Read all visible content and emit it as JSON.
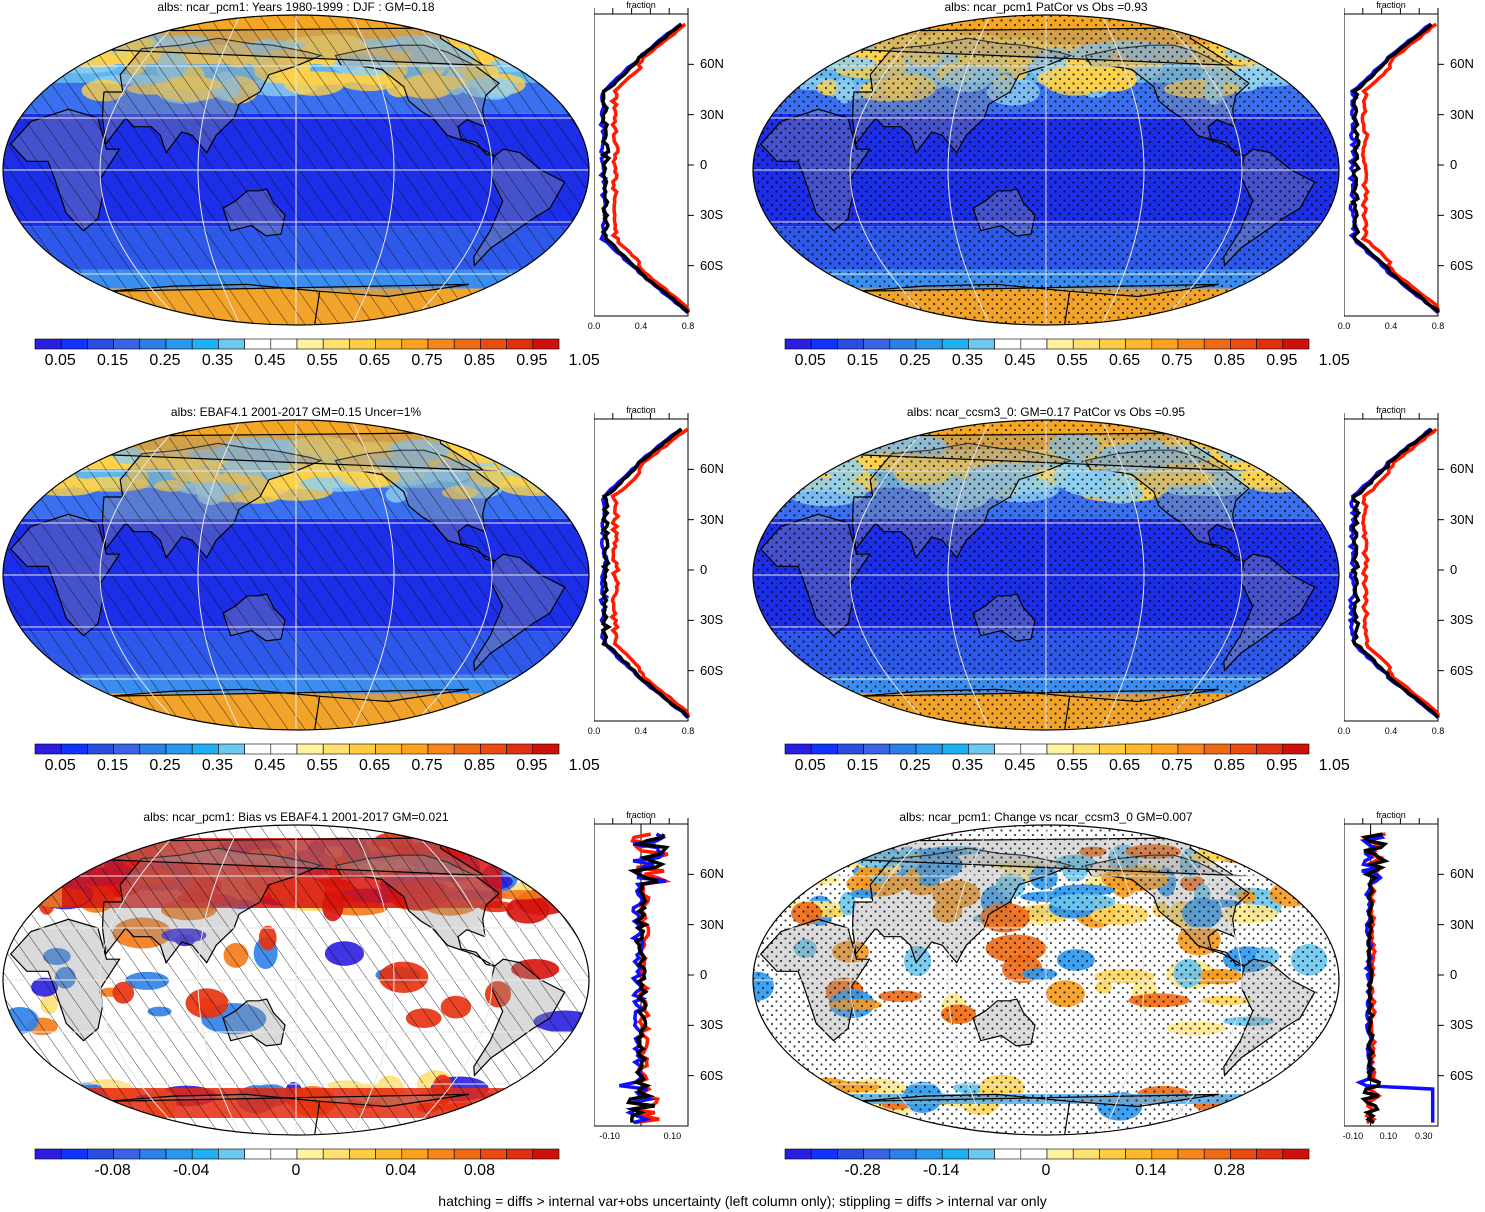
{
  "footnote": "hatching = diffs > internal var+obs uncertainty (left column only); stippling = diffs > internal var only",
  "palette": {
    "full": [
      "#2a1fe0",
      "#1133ff",
      "#2b4de0",
      "#3a63e6",
      "#2f7fe8",
      "#2a97ef",
      "#1fb0f4",
      "#6cc8f0",
      "#ffffff",
      "#ffffff",
      "#fff3a0",
      "#ffe070",
      "#ffcc44",
      "#ffb82e",
      "#fca21c",
      "#f7871a",
      "#f06a14",
      "#ea4c10",
      "#e0300e",
      "#d0100a"
    ],
    "land_overlay": "rgba(150,150,150,0.35)"
  },
  "profile_axis_label": "fraction",
  "lat_labels": [
    "60N",
    "30N",
    "0",
    "30S",
    "60S"
  ],
  "panels": [
    {
      "id": "p1",
      "title": "albs: ncar_pcm1: Years 1980-1999 : DJF : GM=0.18",
      "kind": "abs",
      "pattern": "hatch",
      "cbar_labels": [
        "0.05",
        "0.15",
        "0.25",
        "0.35",
        "0.45",
        "0.55",
        "0.65",
        "0.75",
        "0.85",
        "0.95",
        "1.05"
      ],
      "profile_xticks": [
        "0.0",
        "0.4",
        "0.8"
      ],
      "profile_xrange": [
        0,
        0.8
      ]
    },
    {
      "id": "p2",
      "title": "albs: ncar_pcm1 PatCor vs Obs =0.93",
      "kind": "abs",
      "pattern": "stipple",
      "cbar_labels": [
        "0.05",
        "0.15",
        "0.25",
        "0.35",
        "0.45",
        "0.55",
        "0.65",
        "0.75",
        "0.85",
        "0.95",
        "1.05"
      ],
      "profile_xticks": [
        "0.0",
        "0.4",
        "0.8"
      ],
      "profile_xrange": [
        0,
        0.8
      ]
    },
    {
      "id": "p3",
      "title": "albs: EBAF4.1 2001-2017 GM=0.15 Uncer=1%",
      "kind": "abs",
      "pattern": "hatch",
      "cbar_labels": [
        "0.05",
        "0.15",
        "0.25",
        "0.35",
        "0.45",
        "0.55",
        "0.65",
        "0.75",
        "0.85",
        "0.95",
        "1.05"
      ],
      "profile_xticks": [
        "0.0",
        "0.4",
        "0.8"
      ],
      "profile_xrange": [
        0,
        0.8
      ]
    },
    {
      "id": "p4",
      "title": "albs: ncar_ccsm3_0: GM=0.17 PatCor vs Obs =0.95",
      "kind": "abs",
      "pattern": "stipple",
      "cbar_labels": [
        "0.05",
        "0.15",
        "0.25",
        "0.35",
        "0.45",
        "0.55",
        "0.65",
        "0.75",
        "0.85",
        "0.95",
        "1.05"
      ],
      "profile_xticks": [
        "0.0",
        "0.4",
        "0.8"
      ],
      "profile_xrange": [
        0,
        0.8
      ]
    },
    {
      "id": "p5",
      "title": "albs: ncar_pcm1: Bias vs EBAF4.1 2001-2017 GM=0.021",
      "kind": "diff",
      "pattern": "hatch",
      "cbar_labels": [
        "-0.08",
        "-0.04",
        "0",
        "0.04",
        "0.08"
      ],
      "profile_xticks": [
        "-0.10",
        "0.10"
      ],
      "profile_xrange": [
        -0.15,
        0.15
      ]
    },
    {
      "id": "p6",
      "title": "albs: ncar_pcm1: Change vs ncar_ccsm3_0 GM=0.007",
      "kind": "diff",
      "pattern": "stipple",
      "cbar_labels": [
        "-0.28",
        "-0.14",
        "0",
        "0.14",
        "0.28"
      ],
      "profile_xticks": [
        "-0.10",
        "0.10",
        "0.30"
      ],
      "profile_xrange": [
        -0.15,
        0.38
      ]
    }
  ]
}
